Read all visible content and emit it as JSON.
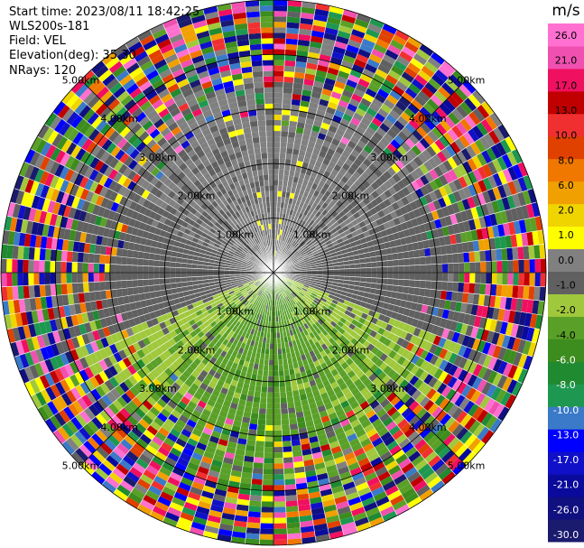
{
  "header": {
    "start_time": "Start time: 2023/08/11 18:42:25",
    "station": "WLS200s-181",
    "field": "Field: VEL",
    "elevation": "Elevation(deg): 35.30",
    "nrays": "NRays: 120"
  },
  "colorbar": {
    "unit": "m/s",
    "colors": [
      "#1a1a6e",
      "#101080",
      "#0a0a9c",
      "#1010c8",
      "#0000ff",
      "#3a7ac8",
      "#1e9850",
      "#208a30",
      "#3c8c1e",
      "#5aa028",
      "#a0c83c",
      "#606060",
      "#808080",
      "#fefe00",
      "#f0d400",
      "#f0a000",
      "#f07800",
      "#e04000",
      "#f03030",
      "#c00000",
      "#f01060",
      "#f050b0",
      "#ff70d0"
    ],
    "ticks": [
      "-30.0",
      "-26.0",
      "-21.0",
      "-17.0",
      "-13.0",
      "-10.0",
      "-8.0",
      "-6.0",
      "-4.0",
      "-2.0",
      "-1.0",
      "0.0",
      "1.0",
      "2.0",
      "6.0",
      "8.0",
      "10.0",
      "13.0",
      "17.0",
      "21.0",
      "26.0"
    ]
  },
  "chart_data": {
    "type": "heatmap",
    "projection": "PPI polar",
    "field": "VEL",
    "units": "m/s",
    "vmin": -30.0,
    "vmax": 30.0,
    "range_rings_km": [
      1.0,
      2.0,
      3.0,
      4.0,
      5.0
    ],
    "ring_labels": [
      "1.00km",
      "2.00km",
      "3.00km",
      "4.00km",
      "5.00km"
    ],
    "max_range_km": 5.0,
    "nrays": 120,
    "gates_per_ray": 50,
    "pattern": {
      "near_north_m_s": 2.5,
      "near_south_m_s": -5.5,
      "noise_onset_km": 2.6,
      "noise_full_km": 4.2
    }
  }
}
